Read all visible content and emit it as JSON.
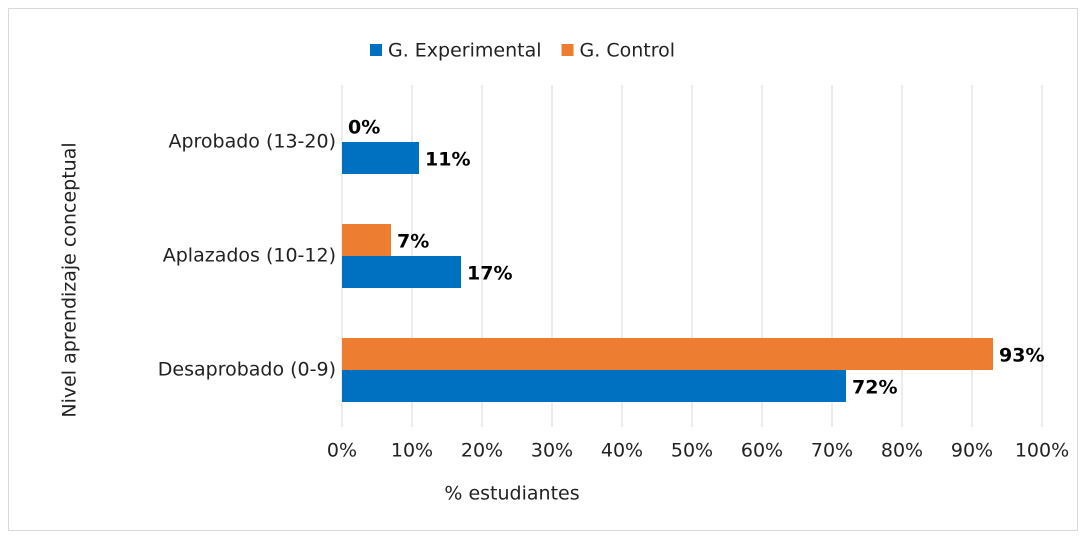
{
  "chart_data": {
    "type": "hbar",
    "x_label": "% estudiantes",
    "y_label": "Nivel aprendizaje conceptual",
    "categories": [
      "Aprobado (13-20)",
      "Aplazados (10-12)",
      "Desaprobado (0-9)"
    ],
    "series": [
      {
        "name": "G. Experimental",
        "color": "#0070c0",
        "values": [
          11,
          17,
          72
        ],
        "value_labels": [
          "11%",
          "17%",
          "72%"
        ]
      },
      {
        "name": "G. Control",
        "color": "#ed7d31",
        "values": [
          0,
          7,
          93
        ],
        "value_labels": [
          "0%",
          "7%",
          "93%"
        ]
      }
    ],
    "xlim": [
      0,
      100
    ],
    "xticks": [
      {
        "value": 0,
        "label": "0%"
      },
      {
        "value": 10,
        "label": "10%"
      },
      {
        "value": 20,
        "label": "20%"
      },
      {
        "value": 30,
        "label": "30%"
      },
      {
        "value": 40,
        "label": "40%"
      },
      {
        "value": 50,
        "label": "50%"
      },
      {
        "value": 60,
        "label": "60%"
      },
      {
        "value": 70,
        "label": "70%"
      },
      {
        "value": 80,
        "label": "80%"
      },
      {
        "value": 90,
        "label": "90%"
      },
      {
        "value": 100,
        "label": "100%"
      }
    ],
    "grid": true,
    "legend": "top"
  }
}
